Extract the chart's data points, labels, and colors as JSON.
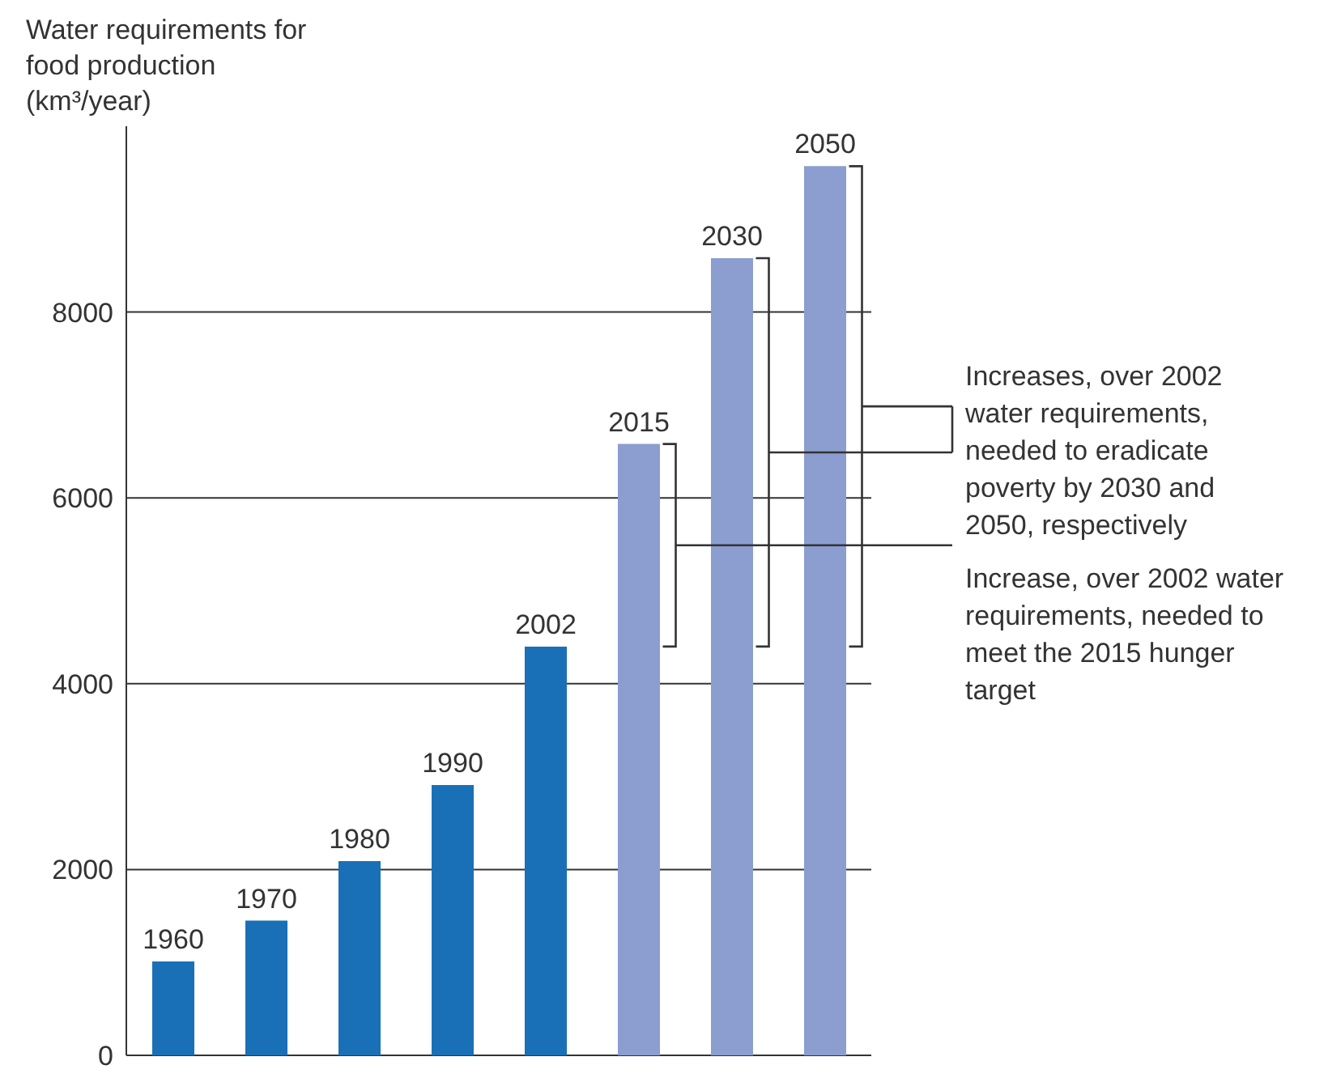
{
  "chart_data": {
    "type": "bar",
    "ylabel": "Water requirements for food production (km³/year)",
    "categories": [
      "1960",
      "1970",
      "1980",
      "1990",
      "2002",
      "2015",
      "2030",
      "2050"
    ],
    "values": [
      1010,
      1450,
      2090,
      2910,
      4400,
      6580,
      8580,
      9570
    ],
    "colors": [
      "#1a70b6",
      "#1a70b6",
      "#1a70b6",
      "#1a70b6",
      "#1a70b6",
      "#8c9ecf",
      "#8c9ecf",
      "#8c9ecf"
    ],
    "ylim": [
      0,
      10000
    ],
    "yticks": [
      0,
      2000,
      4000,
      6000,
      8000
    ],
    "grid": "y",
    "tick_labels": "y",
    "annotations": [
      "Increases, over 2002 water requirements, needed to eradicate poverty by 2030 and 2050, respectively",
      "Increase, over 2002 water requirements, needed to meet the 2015 hunger target"
    ]
  }
}
